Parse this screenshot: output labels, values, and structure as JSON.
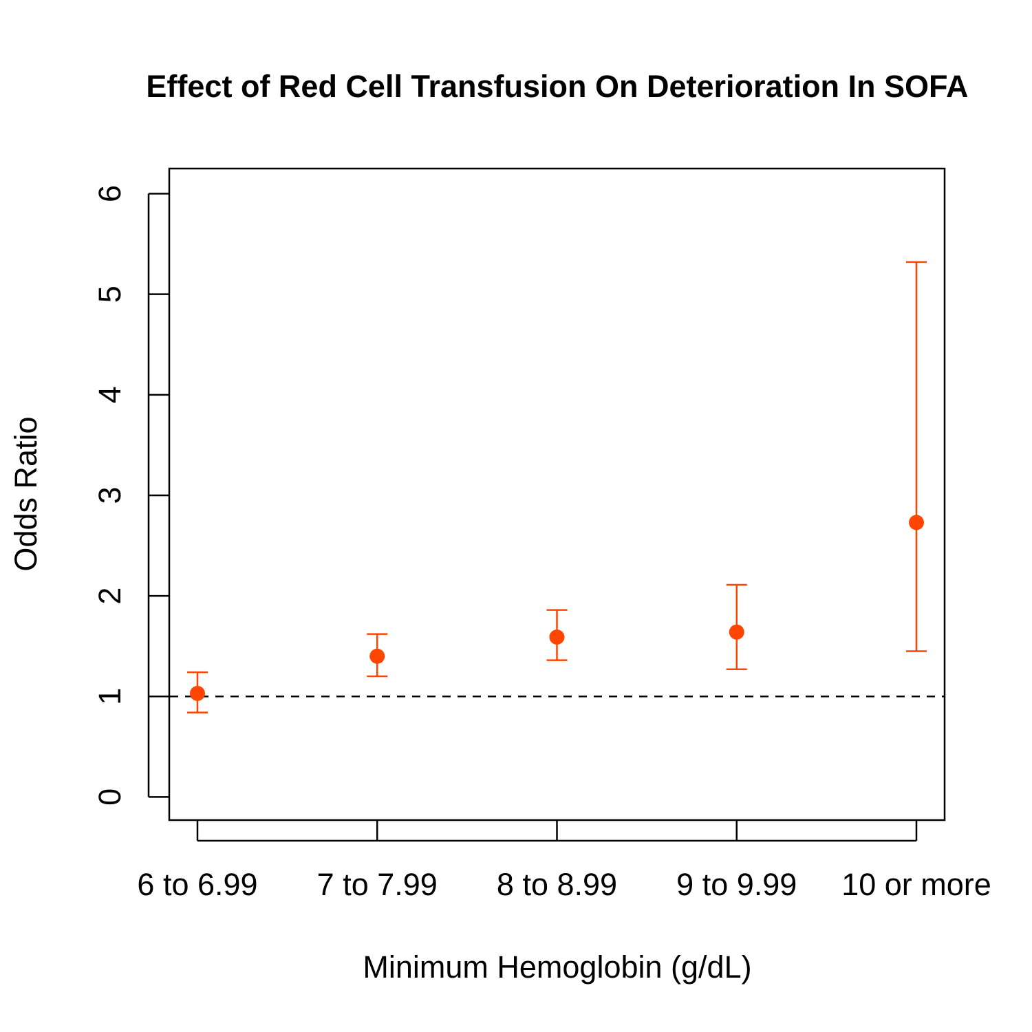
{
  "chart_data": {
    "type": "scatter",
    "title": "Effect of Red Cell Transfusion On Deterioration In SOFA",
    "xlabel": "Minimum Hemoglobin (g/dL)",
    "ylabel": "Odds Ratio",
    "categories": [
      "6 to 6.99",
      "7 to 7.99",
      "8 to 8.99",
      "9 to 9.99",
      "10 or more"
    ],
    "values": [
      1.03,
      1.4,
      1.59,
      1.64,
      2.73
    ],
    "ci_lower": [
      0.84,
      1.2,
      1.36,
      1.27,
      1.45
    ],
    "ci_upper": [
      1.24,
      1.62,
      1.86,
      2.11,
      5.32
    ],
    "ylim": [
      -0.23,
      6.25
    ],
    "yticks": [
      0,
      1,
      2,
      3,
      4,
      5,
      6
    ],
    "reference_line": 1,
    "grid": false,
    "marker_color": "#FF4500"
  }
}
